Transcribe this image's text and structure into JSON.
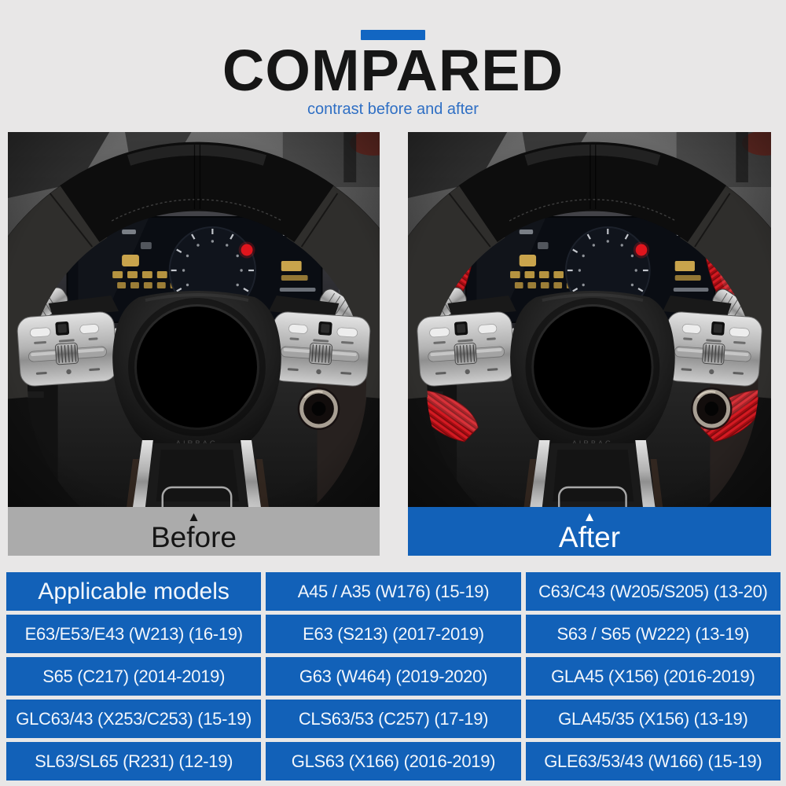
{
  "page": {
    "background": "#e8e7e7"
  },
  "header": {
    "accent_bar_color": "#1266c2",
    "title": "COMPARED",
    "title_color": "#161616",
    "subtitle": "contrast before and after",
    "subtitle_color": "#2f6fc4"
  },
  "comparison": {
    "before": {
      "label": "Before",
      "arrow_icon": "▲",
      "bar_color": "#ababab",
      "text_color": "#151515"
    },
    "after": {
      "label": "After",
      "arrow_icon": "▲",
      "bar_color": "#1261b8",
      "text_color": "#ffffff"
    },
    "photo": {
      "airbag_text": "AIRBAG",
      "paddle_upshift_symbol": "+",
      "paddle_downshift_symbol": "−",
      "paddle_red_color": "#c01218"
    }
  },
  "table": {
    "cell_color": "#1261b8",
    "text_color": "#f2f6fb",
    "rows": [
      [
        "Applicable models",
        "A45 / A35 (W176) (15-19)",
        "C63/C43 (W205/S205) (13-20)"
      ],
      [
        "E63/E53/E43 (W213) (16-19)",
        "E63 (S213) (2017-2019)",
        "S63 / S65 (W222) (13-19)"
      ],
      [
        "S65 (C217) (2014-2019)",
        "G63 (W464) (2019-2020)",
        "GLA45 (X156) (2016-2019)"
      ],
      [
        "GLC63/43 (X253/C253) (15-19)",
        "CLS63/53 (C257) (17-19)",
        "GLA45/35 (X156) (13-19)"
      ],
      [
        "SL63/SL65 (R231) (12-19)",
        "GLS63 (X166) (2016-2019)",
        "GLE63/53/43 (W166) (15-19)"
      ]
    ]
  }
}
